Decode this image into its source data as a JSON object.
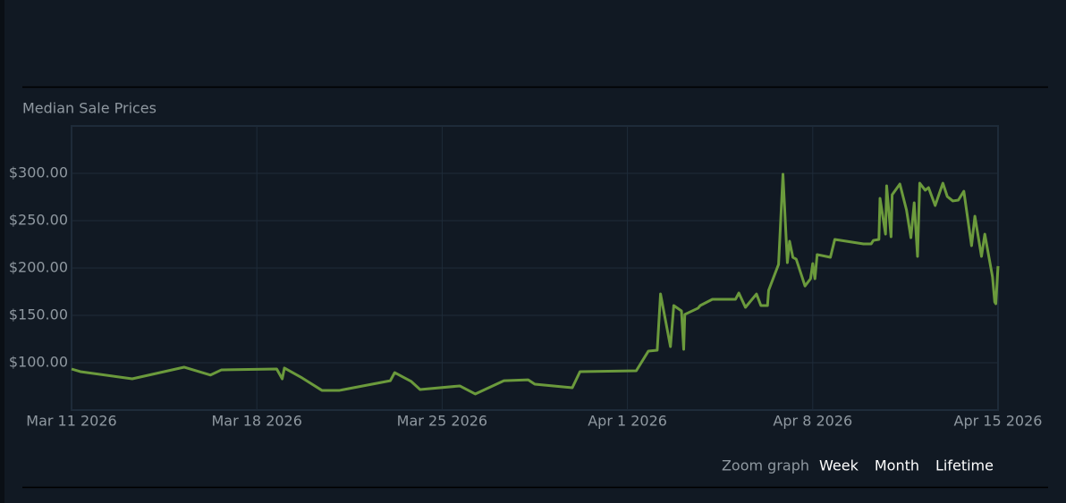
{
  "chart_data": {
    "type": "line",
    "title": "Median Sale Prices",
    "x": [
      "2026-03-11T00",
      "2026-03-11T08",
      "2026-03-13T07",
      "2026-03-15T06",
      "2026-03-16T06",
      "2026-03-16T16",
      "2026-03-18T18",
      "2026-03-18T23",
      "2026-03-19T01",
      "2026-03-19T17",
      "2026-03-20T11",
      "2026-03-21T03",
      "2026-03-23T01",
      "2026-03-23T05",
      "2026-03-23T20",
      "2026-03-24T04",
      "2026-03-25T16",
      "2026-03-26T06",
      "2026-03-27T08",
      "2026-03-28T06",
      "2026-03-28T12",
      "2026-03-29T22",
      "2026-03-30T05",
      "2026-04-01T08",
      "2026-04-01T19",
      "2026-04-02T03",
      "2026-04-02T06",
      "2026-04-02T15",
      "2026-04-02T18",
      "2026-04-03T01",
      "2026-04-03T03",
      "2026-04-03T04",
      "2026-04-03T16",
      "2026-04-03T18",
      "2026-04-04T05",
      "2026-04-05T02",
      "2026-04-05T05",
      "2026-04-05T11",
      "2026-04-05T21",
      "2026-04-06T01",
      "2026-04-06T07",
      "2026-04-06T08",
      "2026-04-06T17",
      "2026-04-06T21",
      "2026-04-07T01",
      "2026-04-07T03",
      "2026-04-07T06",
      "2026-04-07T09",
      "2026-04-07T17",
      "2026-04-07T22",
      "2026-04-08T00",
      "2026-04-08T02",
      "2026-04-08T04",
      "2026-04-08T16",
      "2026-04-08T20",
      "2026-04-09T22",
      "2026-04-10T05",
      "2026-04-10T07",
      "2026-04-10T12",
      "2026-04-10T13",
      "2026-04-10T18",
      "2026-04-10T19",
      "2026-04-10T23",
      "2026-04-11T00",
      "2026-04-11T07",
      "2026-04-11T13",
      "2026-04-11T17",
      "2026-04-11T20",
      "2026-04-11T23",
      "2026-04-12T01",
      "2026-04-12T06",
      "2026-04-12T09",
      "2026-04-12T15",
      "2026-04-12T22",
      "2026-04-13T02",
      "2026-04-13T07",
      "2026-04-13T12",
      "2026-04-13T17",
      "2026-04-14T00",
      "2026-04-14T03",
      "2026-04-14T09",
      "2026-04-14T12",
      "2026-04-14T19",
      "2026-04-14T21",
      "2026-04-14T22",
      "2026-04-15T00"
    ],
    "series": [
      {
        "color": "#6b9a3c",
        "values": [
          93.4,
          90.6,
          83,
          95.3,
          87,
          92.5,
          93.4,
          83,
          94.4,
          84,
          70.8,
          70.8,
          81,
          89.6,
          80.2,
          71.7,
          75.5,
          67,
          81,
          82,
          77.4,
          73.6,
          90.6,
          91.5,
          112.3,
          113.2,
          172.6,
          117,
          160.4,
          154.7,
          114.2,
          151,
          157.6,
          160.4,
          167,
          167,
          173.6,
          158.5,
          172.6,
          160.4,
          160.4,
          176.4,
          203.8,
          299,
          205.7,
          228.3,
          211.3,
          209.4,
          181,
          188.7,
          204.7,
          188.7,
          214.2,
          211.3,
          230.2,
          225.5,
          225.5,
          229.2,
          230.2,
          273.6,
          235.8,
          286.8,
          233,
          277.4,
          288.7,
          261.3,
          232,
          268.9,
          212.3,
          289.6,
          282.1,
          284.9,
          266,
          289.6,
          275.5,
          270.8,
          271.7,
          281.1,
          223.6,
          254.7,
          212.3,
          235.8,
          190.6,
          164.2,
          162.3,
          202
        ]
      }
    ],
    "xlim": [
      "2026-03-11",
      "2026-04-15"
    ],
    "xticks": [
      {
        "value": "2026-03-11",
        "label": "Mar 11 2026"
      },
      {
        "value": "2026-03-18",
        "label": "Mar 18 2026"
      },
      {
        "value": "2026-03-25",
        "label": "Mar 25 2026"
      },
      {
        "value": "2026-04-01",
        "label": "Apr 1 2026"
      },
      {
        "value": "2026-04-08",
        "label": "Apr 8 2026"
      },
      {
        "value": "2026-04-15",
        "label": "Apr 15 2026"
      }
    ],
    "ylim": [
      50,
      350
    ],
    "yticks": [
      {
        "value": 100,
        "label": "$100.00"
      },
      {
        "value": 150,
        "label": "$150.00"
      },
      {
        "value": 200,
        "label": "$200.00"
      },
      {
        "value": 250,
        "label": "$250.00"
      },
      {
        "value": 300,
        "label": "$300.00"
      }
    ],
    "grid": true
  },
  "zoom": {
    "label": "Zoom graph",
    "options": [
      "Week",
      "Month",
      "Lifetime"
    ]
  }
}
